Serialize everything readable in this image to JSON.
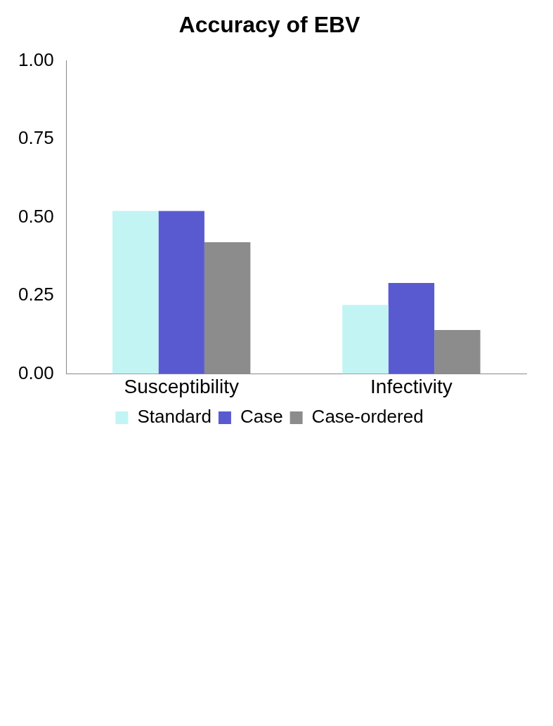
{
  "chart_data": {
    "type": "bar",
    "title": "Accuracy of EBV",
    "categories": [
      "Susceptibility",
      "Infectivity"
    ],
    "series": [
      {
        "name": "Standard",
        "color": "#c2f4f4",
        "values": [
          0.52,
          0.22
        ]
      },
      {
        "name": "Case",
        "color": "#5a5ad0",
        "values": [
          0.52,
          0.29
        ]
      },
      {
        "name": "Case-ordered",
        "color": "#8c8c8c",
        "values": [
          0.42,
          0.14
        ]
      }
    ],
    "ylim": [
      0,
      1
    ],
    "yticks": [
      {
        "value": 0,
        "label": "0.00"
      },
      {
        "value": 0.25,
        "label": "0.25"
      },
      {
        "value": 0.5,
        "label": "0.50"
      },
      {
        "value": 0.75,
        "label": "0.75"
      },
      {
        "value": 1,
        "label": "1.00"
      }
    ],
    "grid": false,
    "legend": "bottom"
  }
}
